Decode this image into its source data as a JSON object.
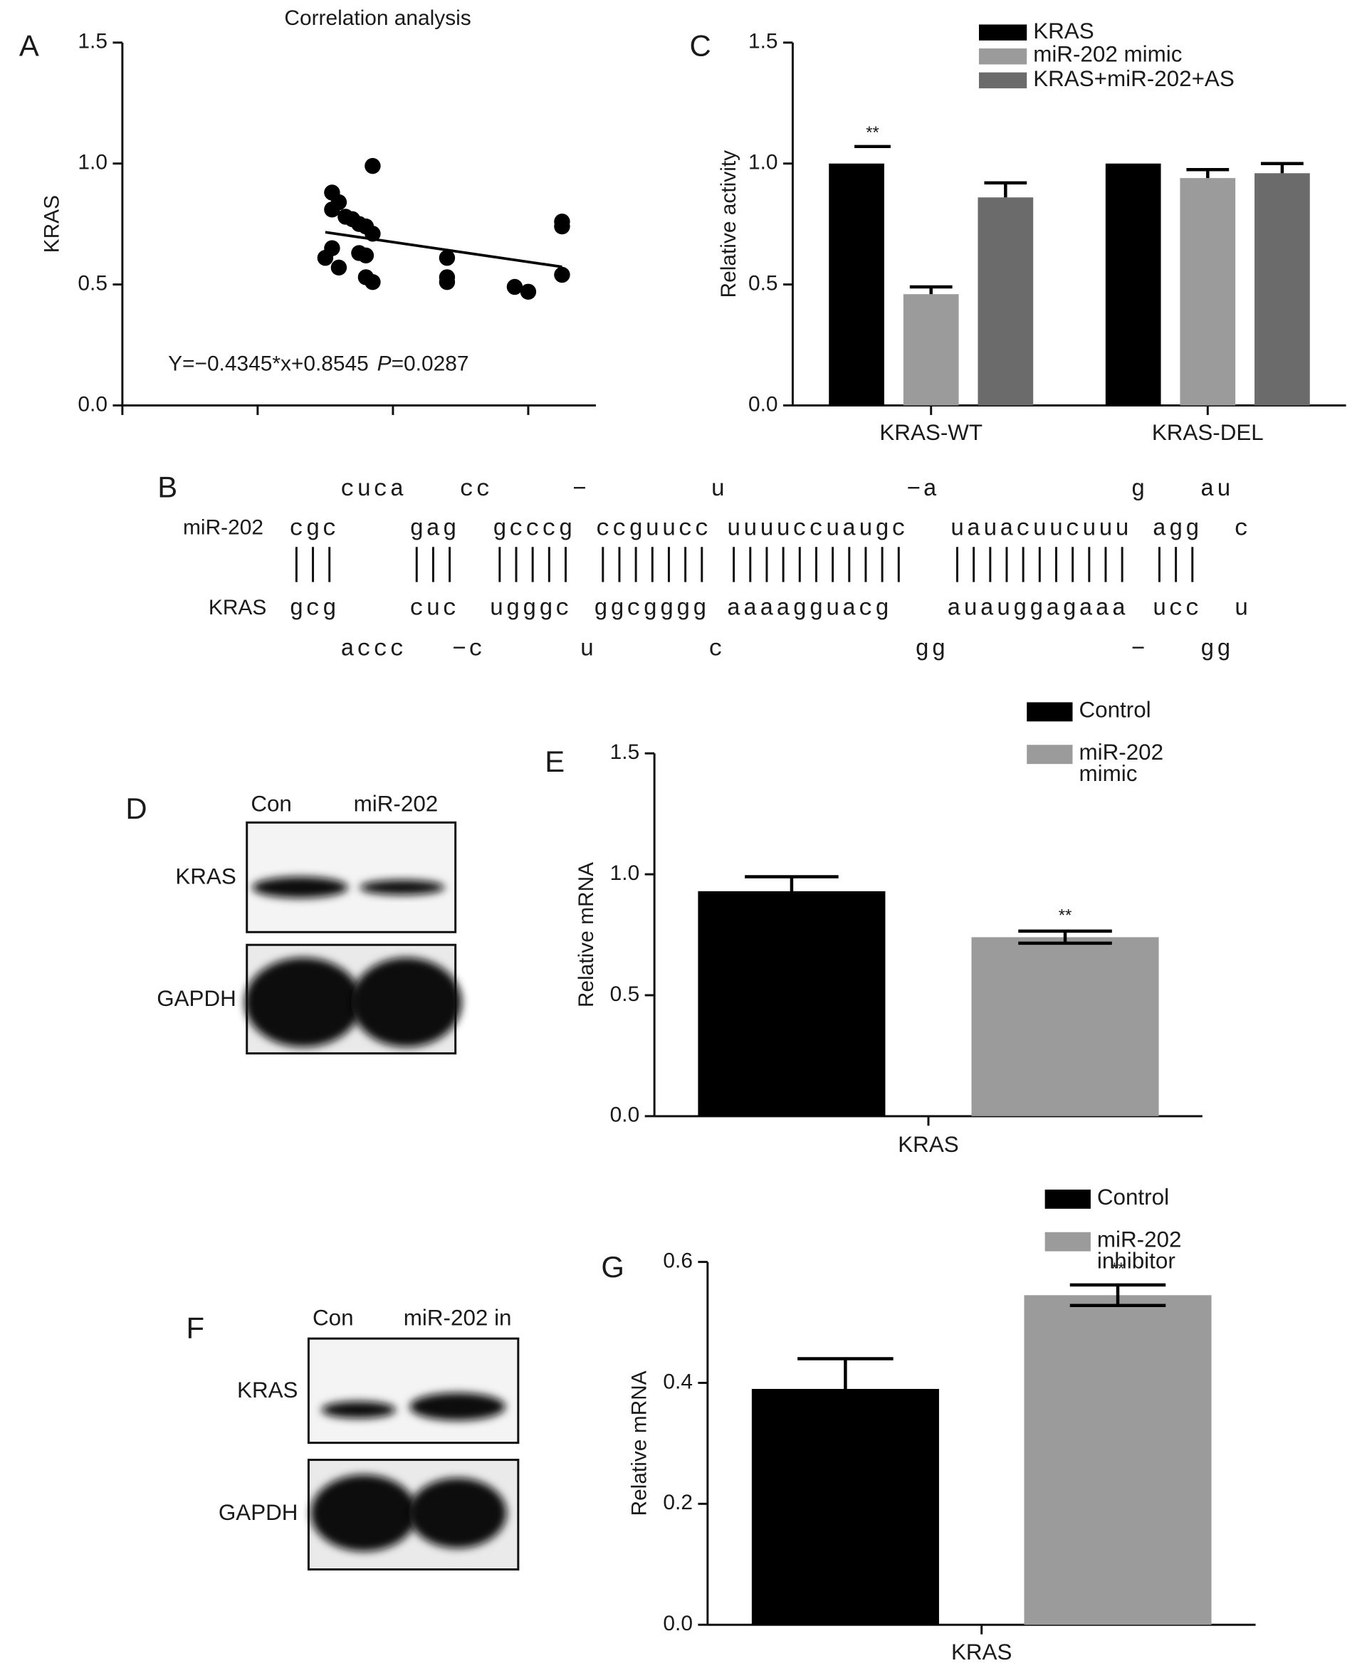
{
  "panel_labels": [
    "A",
    "B",
    "C",
    "D",
    "E",
    "F",
    "G"
  ],
  "chart_data": [
    {
      "type": "scatter",
      "title": "Correlation analysis",
      "ylabel": "KRAS",
      "x": [
        0.31,
        0.31,
        0.32,
        0.33,
        0.34,
        0.35,
        0.36,
        0.37,
        0.31,
        0.3,
        0.32,
        0.35,
        0.36,
        0.36,
        0.37,
        0.37,
        0.48,
        0.48,
        0.48,
        0.58,
        0.6,
        0.65,
        0.65,
        0.65
      ],
      "y": [
        0.88,
        0.81,
        0.84,
        0.78,
        0.77,
        0.75,
        0.74,
        0.71,
        0.65,
        0.61,
        0.57,
        0.63,
        0.62,
        0.53,
        0.51,
        0.99,
        0.61,
        0.53,
        0.51,
        0.49,
        0.47,
        0.76,
        0.74,
        0.54
      ],
      "color": "#000000",
      "trendline": true,
      "xlim": [
        0,
        0.7
      ],
      "xticks": [
        0,
        0.2,
        0.4,
        0.6
      ],
      "ylim": [
        0,
        1.5
      ],
      "yticks": [
        {
          "value": 0,
          "label": "0.0"
        },
        {
          "value": 0.5,
          "label": "0.5"
        },
        {
          "value": 1,
          "label": "1.0"
        },
        {
          "value": 1.5,
          "label": "1.5"
        }
      ],
      "annotation": {
        "equation": "Y=−0.4345*x+0.8545",
        "p_label": "P",
        "p_text": "=0.0287"
      }
    },
    {
      "type": "bar",
      "ylabel": "Relative activity",
      "categories": [
        "KRAS-WT",
        "KRAS-DEL"
      ],
      "series": [
        {
          "name": "KRAS",
          "color": "#000000",
          "values": [
            1.0,
            1.0
          ]
        },
        {
          "name": "miR-202 mimic",
          "color": "#9b9b9b",
          "values": [
            0.46,
            0.94
          ],
          "errors": [
            0.03,
            0.035
          ]
        },
        {
          "name": "KRAS+miR-202+AS",
          "color": "#6b6b6b",
          "values": [
            0.86,
            0.96
          ],
          "errors": [
            0.06,
            0.04
          ]
        }
      ],
      "error_bars": "upper",
      "ylim": [
        0,
        1.5
      ],
      "yticks": [
        {
          "value": 0,
          "label": "0.0"
        },
        {
          "value": 0.5,
          "label": "0.5"
        },
        {
          "value": 1,
          "label": "1.0"
        },
        {
          "value": 1.5,
          "label": "1.5"
        }
      ],
      "annotations": [
        {
          "text": "**",
          "category": 0,
          "series": 0
        }
      ]
    },
    {
      "type": "bar",
      "ylabel": "Relative mRNA",
      "categories": [
        "KRAS"
      ],
      "series": [
        {
          "name": "Control",
          "color": "#000000",
          "values": [
            0.93
          ],
          "errors": [
            0.06
          ]
        },
        {
          "name": "miR-202 mimic",
          "color": "#9b9b9b",
          "values": [
            0.74
          ],
          "errors": [
            0.025
          ]
        }
      ],
      "error_bars": "both",
      "ylim": [
        0,
        1.5
      ],
      "yticks": [
        {
          "value": 0,
          "label": "0.0"
        },
        {
          "value": 0.5,
          "label": "0.5"
        },
        {
          "value": 1,
          "label": "1.0"
        },
        {
          "value": 1.5,
          "label": "1.5"
        }
      ],
      "annotations": [
        {
          "text": "**",
          "category": 0,
          "series": 1
        }
      ]
    },
    {
      "type": "bar",
      "ylabel": "Relative mRNA",
      "categories": [
        "KRAS"
      ],
      "series": [
        {
          "name": "Control",
          "color": "#000000",
          "values": [
            0.39
          ],
          "errors": [
            0.05
          ]
        },
        {
          "name": "miR-202 inhibitor",
          "color": "#9b9b9b",
          "values": [
            0.545
          ],
          "errors": [
            0.017
          ]
        }
      ],
      "error_bars": "both",
      "ylim": [
        0,
        0.6
      ],
      "yticks": [
        {
          "value": 0,
          "label": "0.0"
        },
        {
          "value": 0.2,
          "label": "0.2"
        },
        {
          "value": 0.4,
          "label": "0.4"
        },
        {
          "value": 0.6,
          "label": "0.6"
        }
      ],
      "annotations": [
        {
          "text": "**",
          "category": 0,
          "series": 1
        }
      ]
    }
  ],
  "alignment": {
    "labels": [
      "miR-202",
      "KRAS"
    ],
    "rows": [
      [
        "cuca",
        "cc",
        "−",
        "u",
        "−a",
        "g",
        "au"
      ],
      [
        "cgc",
        "gag",
        "gcccg",
        "ccguucc",
        "uuuuccuaugc",
        "uauacuucuuu",
        "agg",
        "c"
      ],
      [
        "gcg",
        "cuc",
        "ugggc",
        "ggcgggg",
        "aaaagguacg",
        "auauggagaaa",
        "ucc",
        "u"
      ],
      [
        "accc",
        "−c",
        "u",
        "c",
        "gg",
        "−",
        "gg"
      ]
    ]
  },
  "blots": [
    {
      "lanes": [
        "Con",
        "miR-202"
      ],
      "proteins": [
        "KRAS",
        "GAPDH"
      ]
    },
    {
      "lanes": [
        "Con",
        "miR-202 in"
      ],
      "proteins": [
        "KRAS",
        "GAPDH"
      ]
    }
  ]
}
